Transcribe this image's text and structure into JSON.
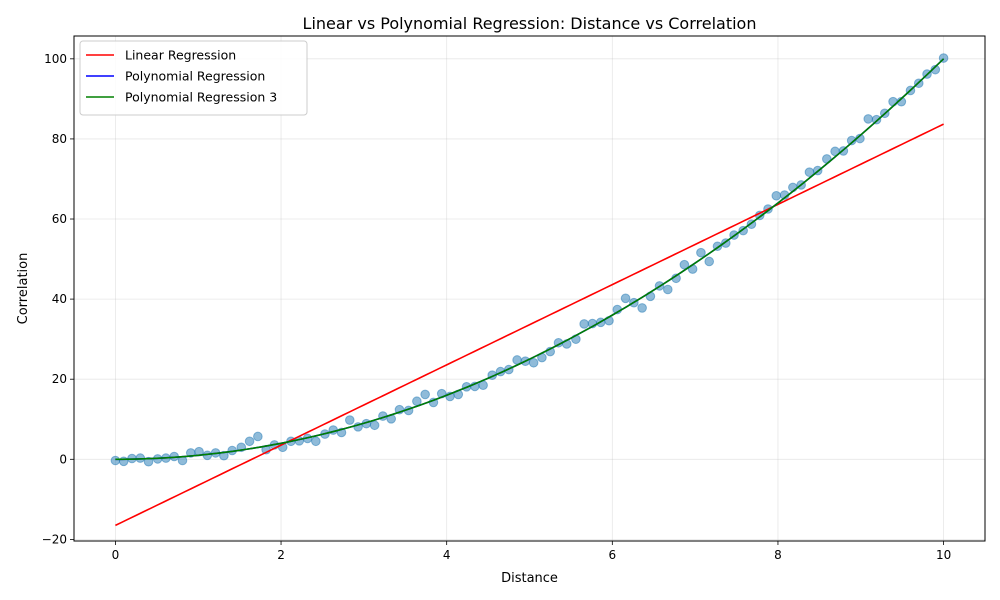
{
  "chart_data": {
    "type": "line",
    "title": "Linear vs Polynomial Regression: Distance vs Correlation",
    "xlabel": "Distance",
    "ylabel": "Correlation",
    "xlim": [
      -0.5,
      10.5
    ],
    "ylim": [
      -20.4,
      105.7
    ],
    "xticks": [
      0,
      2,
      4,
      6,
      8,
      10
    ],
    "xtick_labels": [
      "0",
      "2",
      "4",
      "6",
      "8",
      "10"
    ],
    "yticks": [
      -20,
      0,
      20,
      40,
      60,
      80,
      100
    ],
    "ytick_labels": [
      "−20",
      "0",
      "20",
      "40",
      "60",
      "80",
      "100"
    ],
    "grid": true,
    "legend_position": "top-left",
    "scatter": {
      "color": "#1f77b4",
      "x": [
        0.0,
        0.1,
        0.2,
        0.3,
        0.4,
        0.51,
        0.61,
        0.71,
        0.81,
        0.91,
        1.01,
        1.11,
        1.21,
        1.31,
        1.41,
        1.52,
        1.62,
        1.72,
        1.82,
        1.92,
        2.02,
        2.12,
        2.22,
        2.32,
        2.42,
        2.53,
        2.63,
        2.73,
        2.83,
        2.93,
        3.03,
        3.13,
        3.23,
        3.33,
        3.43,
        3.54,
        3.64,
        3.74,
        3.84,
        3.94,
        4.04,
        4.14,
        4.24,
        4.34,
        4.44,
        4.55,
        4.65,
        4.75,
        4.85,
        4.95,
        5.05,
        5.15,
        5.25,
        5.35,
        5.45,
        5.56,
        5.66,
        5.76,
        5.86,
        5.96,
        6.06,
        6.16,
        6.26,
        6.36,
        6.46,
        6.57,
        6.67,
        6.77,
        6.87,
        6.97,
        7.07,
        7.17,
        7.27,
        7.37,
        7.47,
        7.58,
        7.68,
        7.78,
        7.88,
        7.98,
        8.08,
        8.18,
        8.28,
        8.38,
        8.48,
        8.59,
        8.69,
        8.79,
        8.89,
        8.99,
        9.09,
        9.19,
        9.29,
        9.39,
        9.49,
        9.6,
        9.7,
        9.8,
        9.9,
        10.0
      ],
      "y": [
        -0.3,
        -0.5,
        0.2,
        0.3,
        -0.6,
        0.1,
        0.3,
        0.7,
        -0.3,
        1.6,
        1.9,
        1.0,
        1.6,
        0.9,
        2.2,
        3.0,
        4.5,
        5.7,
        2.4,
        3.6,
        3.0,
        4.5,
        4.6,
        5.2,
        4.5,
        6.3,
        7.3,
        6.7,
        9.8,
        8.1,
        8.9,
        8.5,
        10.8,
        10.1,
        12.4,
        12.2,
        14.5,
        16.2,
        14.2,
        16.4,
        15.7,
        16.2,
        18.1,
        18.2,
        18.5,
        21.0,
        21.9,
        22.4,
        24.8,
        24.5,
        24.1,
        25.4,
        26.9,
        29.1,
        28.8,
        30.0,
        33.8,
        33.9,
        34.2,
        34.6,
        37.4,
        40.2,
        39.1,
        37.8,
        40.7,
        43.3,
        42.4,
        45.2,
        48.6,
        47.5,
        51.6,
        49.4,
        53.2,
        54.0,
        56.0,
        57.1,
        58.7,
        60.9,
        62.5,
        65.8,
        66.0,
        67.9,
        68.5,
        71.7,
        72.1,
        75.0,
        76.9,
        77.0,
        79.6,
        80.1,
        85.0,
        84.8,
        86.4,
        89.3,
        89.3,
        92.1,
        93.9,
        96.2,
        97.3,
        100.2
      ]
    },
    "series": [
      {
        "name": "Linear Regression",
        "color": "#ff0000",
        "kind": "linear",
        "coef": [
          -16.5,
          10.02
        ]
      },
      {
        "name": "Polynomial Regression",
        "color": "#0000ff",
        "kind": "poly",
        "coef": [
          0,
          0,
          1
        ]
      },
      {
        "name": "Polynomial Regression 3",
        "color": "#008000",
        "kind": "poly",
        "coef": [
          0,
          0,
          1
        ]
      }
    ]
  }
}
